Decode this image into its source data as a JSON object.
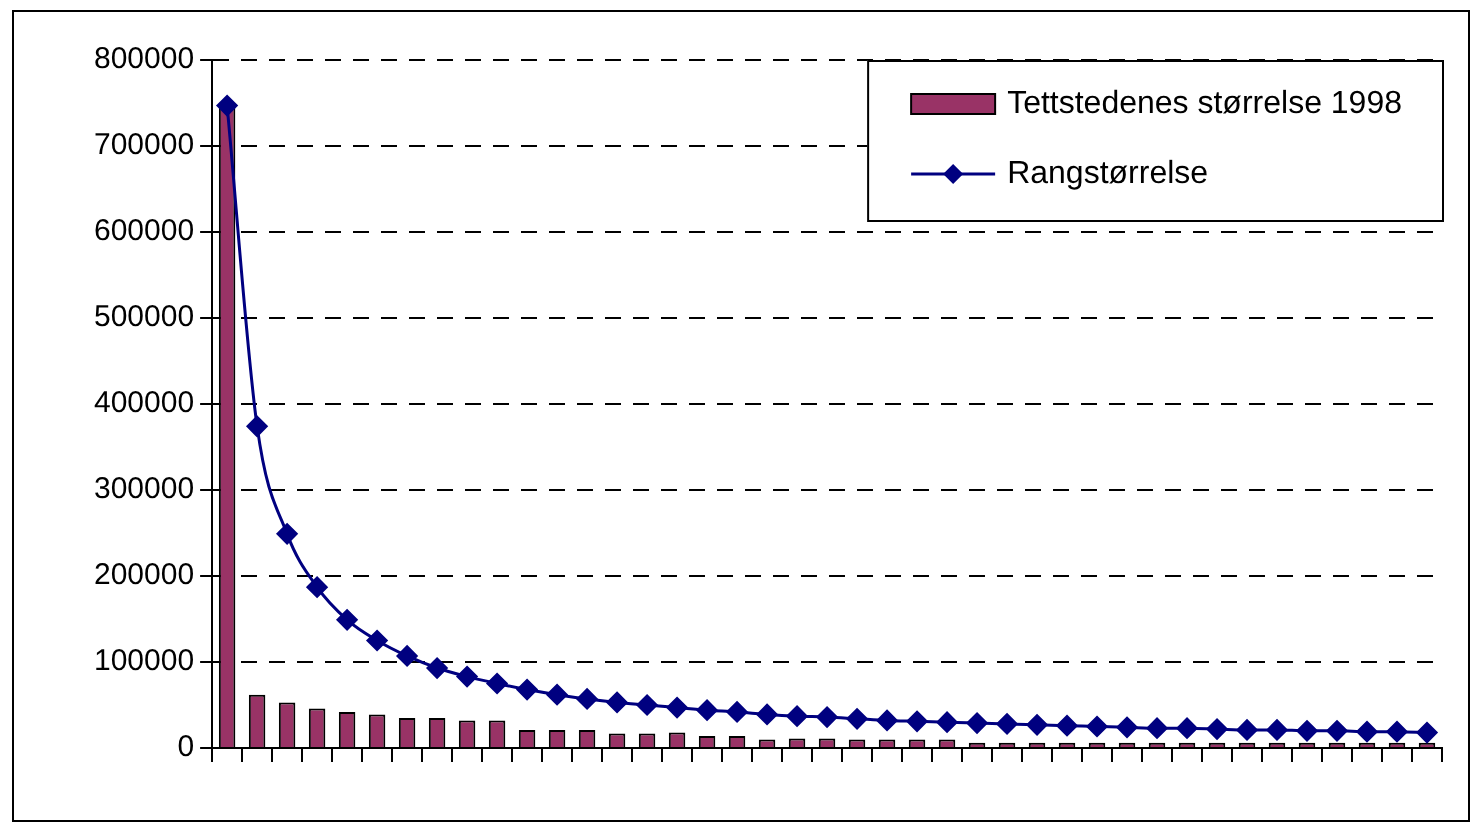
{
  "chart_data": {
    "type": "bar",
    "categories": [
      null,
      null,
      null,
      null,
      null,
      null,
      null,
      null,
      null,
      null,
      null,
      null,
      null,
      null,
      null,
      null,
      null,
      null,
      null,
      null,
      null,
      null,
      null,
      null,
      null,
      null,
      null,
      null,
      null,
      null,
      null,
      null,
      null,
      null,
      null,
      null,
      null,
      null,
      null,
      null,
      null
    ],
    "series": [
      {
        "name": "Tettstedenes størrelse 1998",
        "color": "#993366",
        "values": [
          747000,
          62000,
          53000,
          46000,
          42000,
          39000,
          35000,
          35000,
          32000,
          32000,
          21000,
          21000,
          21000,
          17000,
          17000,
          18000,
          14000,
          14000,
          10000,
          11000,
          11000,
          10000,
          10000,
          10000,
          10000,
          6000,
          6000,
          6000,
          6000,
          6000,
          6000,
          6000,
          6000,
          6000,
          6000,
          6000,
          6000,
          6000,
          6000,
          6000,
          6000
        ]
      },
      {
        "name": "Rangstørrelse",
        "type": "line",
        "color": "#000080",
        "marker": "diamond",
        "values": [
          747000,
          374000,
          249000,
          187000,
          149000,
          125000,
          107000,
          93000,
          83000,
          75000,
          68000,
          62000,
          57000,
          53000,
          50000,
          47000,
          44000,
          42000,
          39000,
          37000,
          36000,
          34000,
          32000,
          31000,
          30000,
          29000,
          28000,
          27000,
          26000,
          25000,
          24000,
          23000,
          23000,
          22000,
          21000,
          21000,
          20000,
          20000,
          19000,
          19000,
          18000
        ]
      }
    ],
    "ylim": [
      0,
      800000
    ],
    "yticks": [
      0,
      100000,
      200000,
      300000,
      400000,
      500000,
      600000,
      700000,
      800000
    ],
    "grid": "y",
    "legend": "top right"
  }
}
